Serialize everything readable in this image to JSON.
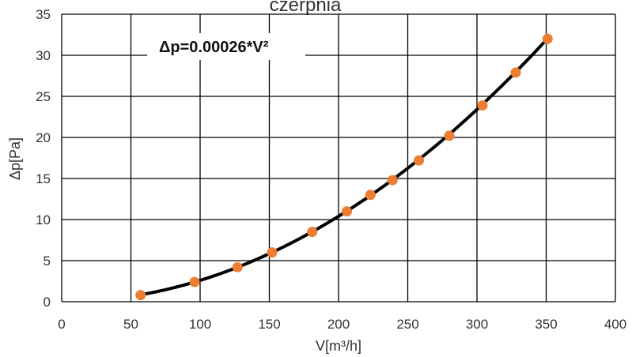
{
  "chart_data": {
    "type": "scatter",
    "title": "czerpnia",
    "xlabel": "V[m³/h]",
    "ylabel": "Δp[Pa]",
    "xlim": [
      0,
      400
    ],
    "ylim": [
      0,
      35
    ],
    "xticks": [
      0,
      50,
      100,
      150,
      200,
      250,
      300,
      350,
      400
    ],
    "yticks": [
      0,
      5,
      10,
      15,
      20,
      25,
      30,
      35
    ],
    "grid": true,
    "legend": "none",
    "annotation": "Δp=0.00026*V²",
    "fit": {
      "type": "power",
      "coefficient": 0.00026,
      "exponent": 2,
      "color": "#000000"
    },
    "series": [
      {
        "marker_color": "#ED7D31",
        "x": [
          57,
          96,
          127,
          152,
          181,
          206,
          223,
          239,
          258,
          280,
          304,
          328,
          351
        ],
        "y": [
          0.8,
          2.4,
          4.2,
          6.0,
          8.5,
          11.0,
          13.0,
          14.8,
          17.2,
          20.2,
          23.9,
          27.9,
          32.0
        ]
      }
    ]
  }
}
